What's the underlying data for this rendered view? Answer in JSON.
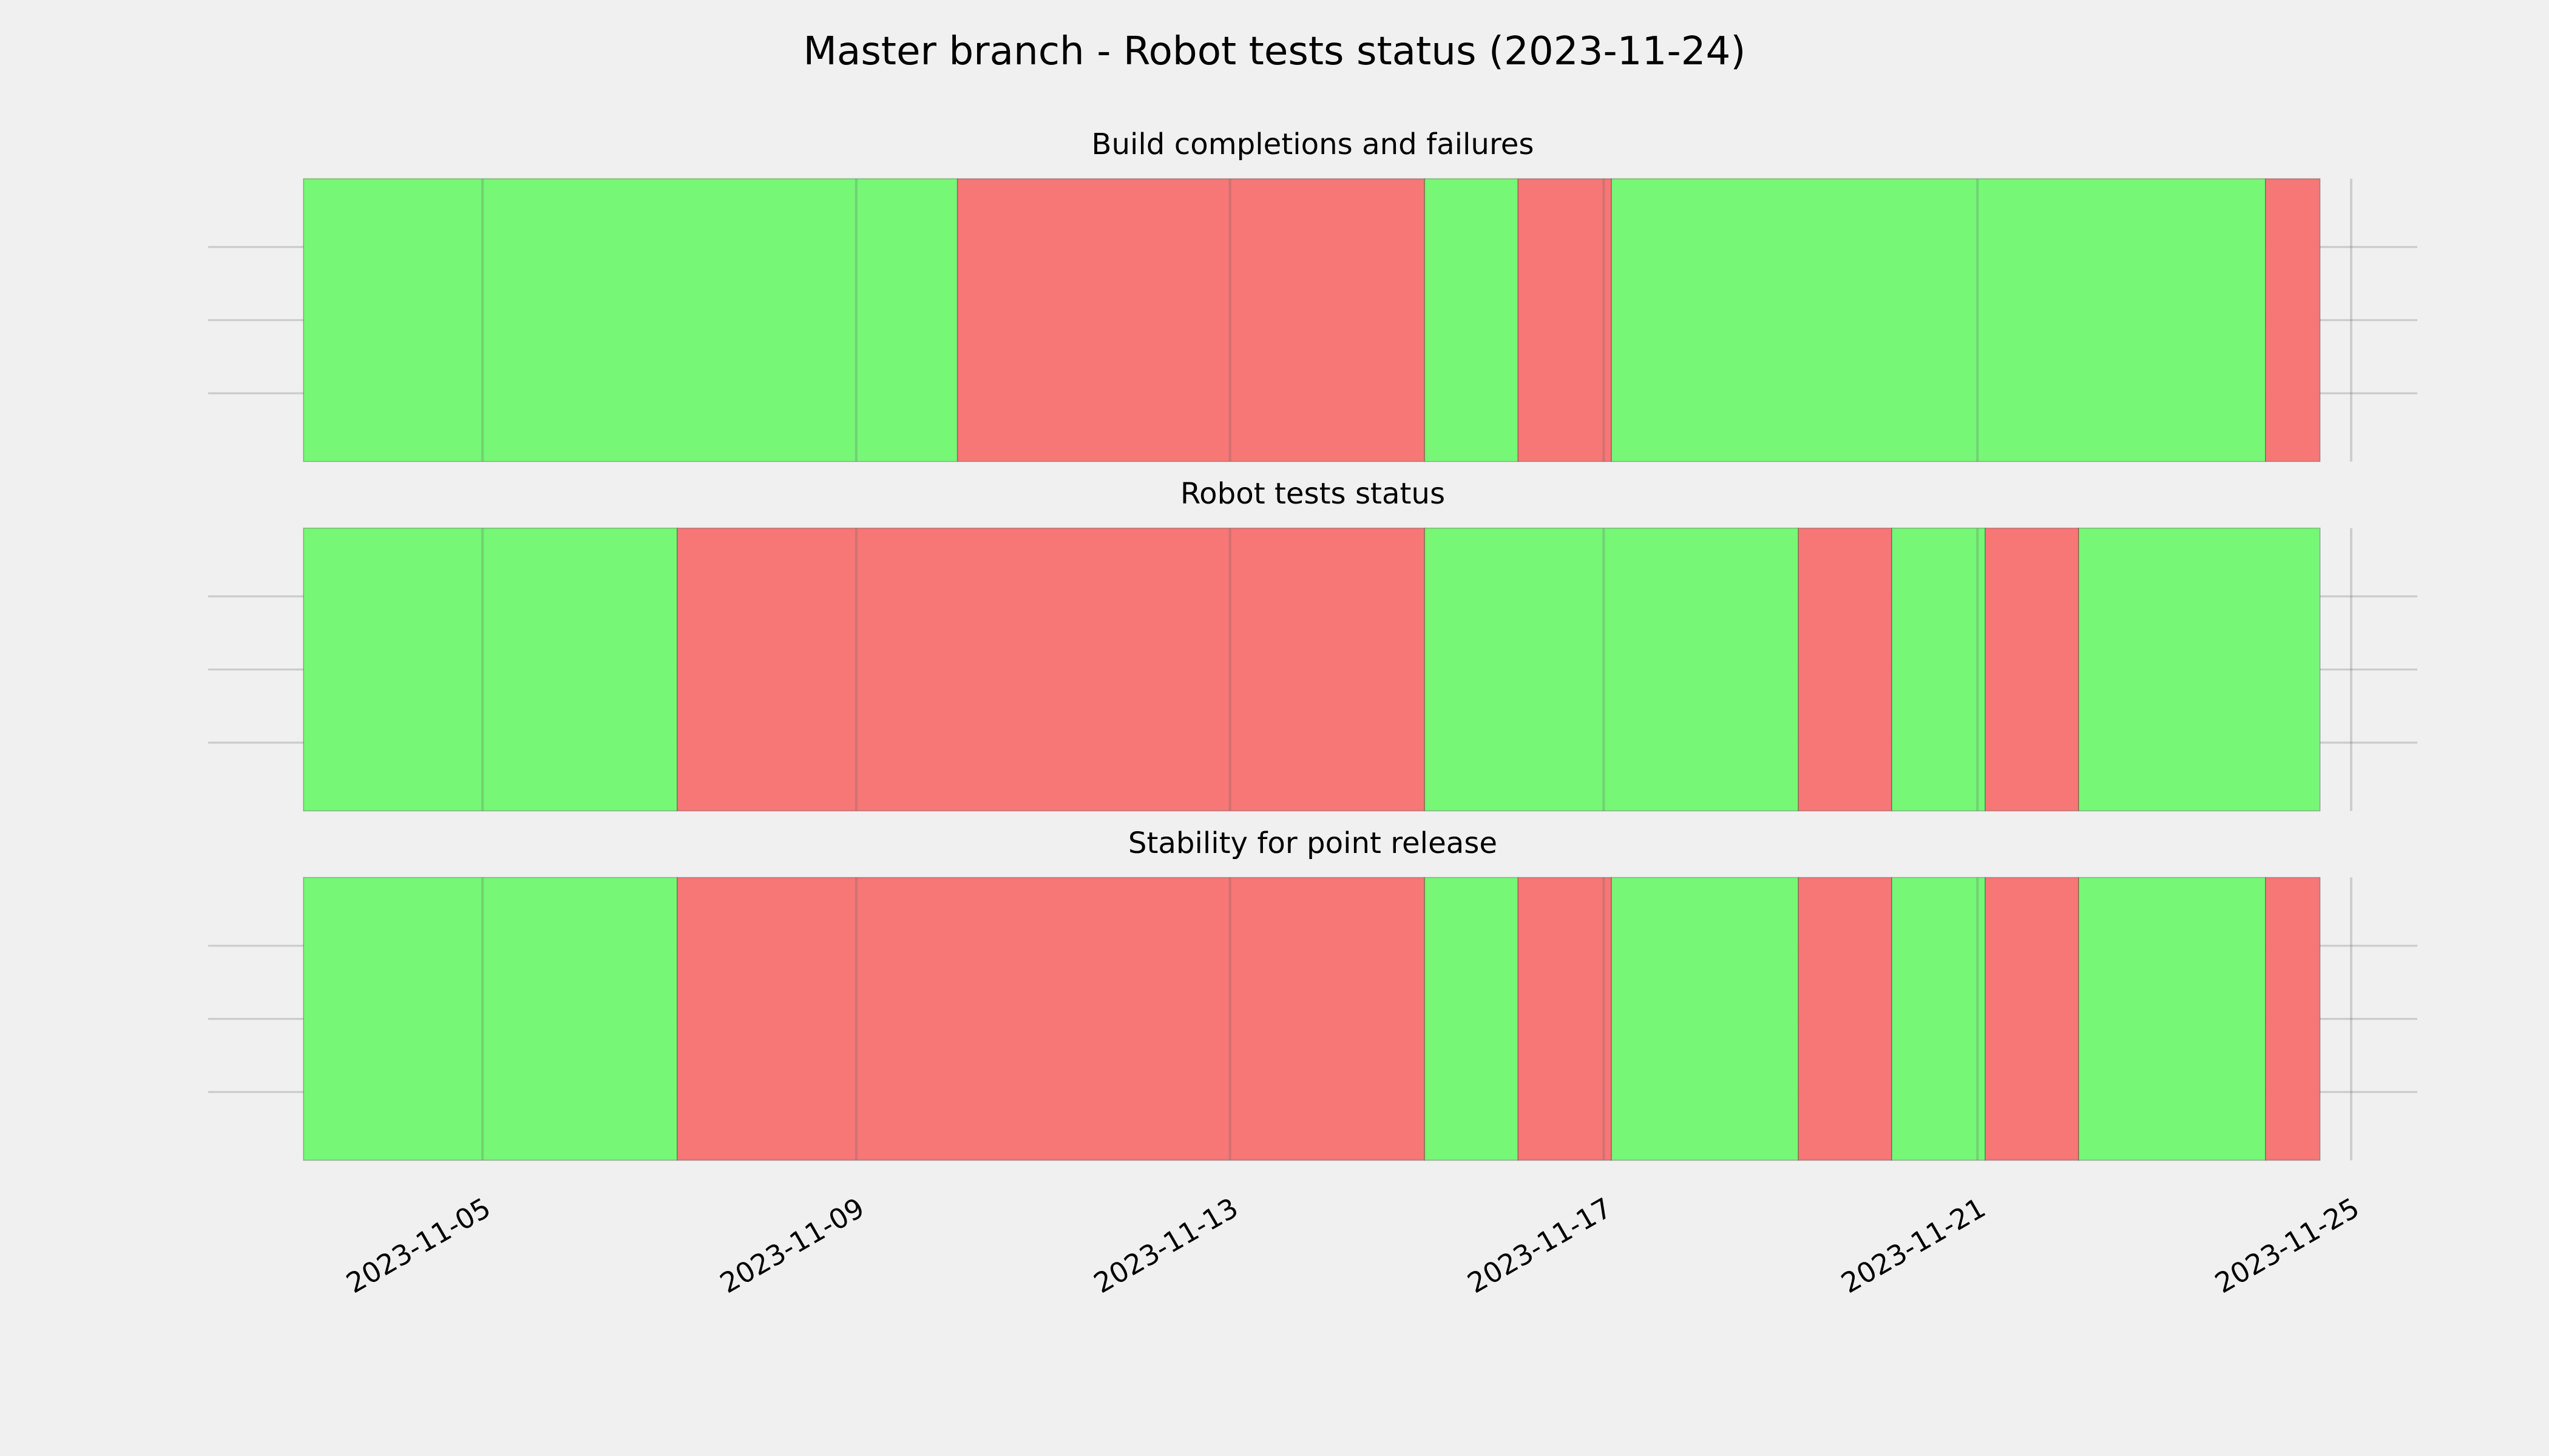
{
  "title": "Master branch - Robot tests status (2023-11-24)",
  "xlim": [
    "2023-11-02T01:30",
    "2023-11-25T17:00"
  ],
  "xticks": [
    "2023-11-05",
    "2023-11-09",
    "2023-11-13",
    "2023-11-17",
    "2023-11-21",
    "2023-11-25"
  ],
  "grid": true,
  "chart_data": [
    {
      "type": "timeline",
      "title": "Build completions and failures",
      "segments": [
        {
          "start": "2023-11-03T02:00",
          "end": "2023-11-10T02:00",
          "color": "#76f776"
        },
        {
          "start": "2023-11-10T02:00",
          "end": "2023-11-15T02:00",
          "color": "#f77676"
        },
        {
          "start": "2023-11-15T02:00",
          "end": "2023-11-16T02:00",
          "color": "#76f776"
        },
        {
          "start": "2023-11-16T02:00",
          "end": "2023-11-17T02:00",
          "color": "#f77676"
        },
        {
          "start": "2023-11-17T02:00",
          "end": "2023-11-24T02:00",
          "color": "#76f776"
        },
        {
          "start": "2023-11-24T02:00",
          "end": "2023-11-24T16:00",
          "color": "#f77676"
        }
      ]
    },
    {
      "type": "timeline",
      "title": "Robot tests status",
      "segments": [
        {
          "start": "2023-11-03T02:00",
          "end": "2023-11-07T02:00",
          "color": "#76f776"
        },
        {
          "start": "2023-11-07T02:00",
          "end": "2023-11-15T02:00",
          "color": "#f77676"
        },
        {
          "start": "2023-11-15T02:00",
          "end": "2023-11-19T02:00",
          "color": "#76f776"
        },
        {
          "start": "2023-11-19T02:00",
          "end": "2023-11-20T02:00",
          "color": "#f77676"
        },
        {
          "start": "2023-11-20T02:00",
          "end": "2023-11-21T02:00",
          "color": "#76f776"
        },
        {
          "start": "2023-11-21T02:00",
          "end": "2023-11-22T02:00",
          "color": "#f77676"
        },
        {
          "start": "2023-11-22T02:00",
          "end": "2023-11-24T16:00",
          "color": "#76f776"
        }
      ]
    },
    {
      "type": "timeline",
      "title": "Stability for point release",
      "segments": [
        {
          "start": "2023-11-03T02:00",
          "end": "2023-11-07T02:00",
          "color": "#76f776"
        },
        {
          "start": "2023-11-07T02:00",
          "end": "2023-11-15T02:00",
          "color": "#f77676"
        },
        {
          "start": "2023-11-15T02:00",
          "end": "2023-11-16T02:00",
          "color": "#76f776"
        },
        {
          "start": "2023-11-16T02:00",
          "end": "2023-11-17T02:00",
          "color": "#f77676"
        },
        {
          "start": "2023-11-17T02:00",
          "end": "2023-11-19T02:00",
          "color": "#76f776"
        },
        {
          "start": "2023-11-19T02:00",
          "end": "2023-11-20T02:00",
          "color": "#f77676"
        },
        {
          "start": "2023-11-20T02:00",
          "end": "2023-11-21T02:00",
          "color": "#76f776"
        },
        {
          "start": "2023-11-21T02:00",
          "end": "2023-11-22T02:00",
          "color": "#f77676"
        },
        {
          "start": "2023-11-22T02:00",
          "end": "2023-11-24T02:00",
          "color": "#76f776"
        },
        {
          "start": "2023-11-24T02:00",
          "end": "2023-11-24T16:00",
          "color": "#f77676"
        }
      ]
    }
  ]
}
